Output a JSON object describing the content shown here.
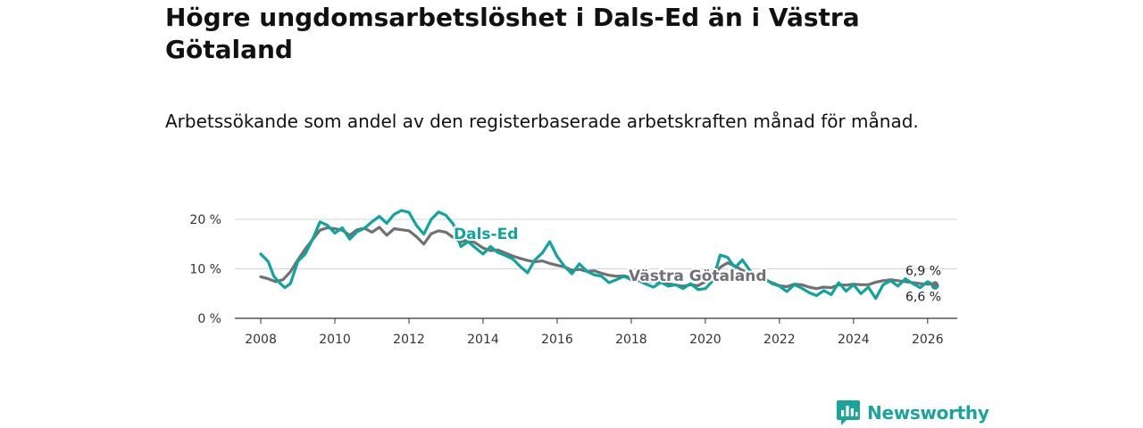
{
  "title": "Högre ungdomsarbetslöshet i Dals-Ed än i Västra Götaland",
  "subtitle": "Arbetssökande som andel av den registerbaserade arbetskraften månad för månad.",
  "brand": {
    "name": "Newsworthy",
    "color": "#1ba39c"
  },
  "chart_data": {
    "type": "line",
    "title": "Högre ungdomsarbetslöshet i Dals-Ed än i Västra Götaland",
    "subtitle": "Arbetssökande som andel av den registerbaserade arbetskraften månad för månad.",
    "xlabel": "",
    "ylabel": "",
    "xlim": [
      2007.3,
      2026.8
    ],
    "ylim": [
      0,
      20
    ],
    "yticks": [
      0,
      10,
      20
    ],
    "ytick_labels": [
      "0 %",
      "10 %",
      "20 %"
    ],
    "xticks": [
      2008,
      2010,
      2012,
      2014,
      2016,
      2018,
      2020,
      2022,
      2024,
      2026
    ],
    "xtick_labels": [
      "2008",
      "2010",
      "2012",
      "2014",
      "2016",
      "2018",
      "2020",
      "2022",
      "2024",
      "2026"
    ],
    "grid": true,
    "series": [
      {
        "name": "Västra Götaland",
        "label": "Västra Götaland",
        "color": "#717074",
        "end_label": "6,9 %",
        "points": [
          [
            2008.0,
            8.4
          ],
          [
            2008.2,
            8.0
          ],
          [
            2008.4,
            7.4
          ],
          [
            2008.6,
            7.8
          ],
          [
            2008.8,
            9.4
          ],
          [
            2009.0,
            11.8
          ],
          [
            2009.2,
            14.0
          ],
          [
            2009.4,
            15.9
          ],
          [
            2009.6,
            17.8
          ],
          [
            2009.8,
            18.3
          ],
          [
            2010.0,
            18.1
          ],
          [
            2010.2,
            17.8
          ],
          [
            2010.4,
            16.8
          ],
          [
            2010.6,
            17.9
          ],
          [
            2010.8,
            18.2
          ],
          [
            2011.0,
            17.4
          ],
          [
            2011.2,
            18.4
          ],
          [
            2011.4,
            16.8
          ],
          [
            2011.6,
            18.1
          ],
          [
            2011.8,
            17.9
          ],
          [
            2012.0,
            17.7
          ],
          [
            2012.2,
            16.5
          ],
          [
            2012.4,
            15.0
          ],
          [
            2012.6,
            17.1
          ],
          [
            2012.8,
            17.7
          ],
          [
            2013.0,
            17.4
          ],
          [
            2013.2,
            16.3
          ],
          [
            2013.4,
            15.4
          ],
          [
            2013.6,
            15.9
          ],
          [
            2013.8,
            15.2
          ],
          [
            2014.0,
            14.2
          ],
          [
            2014.2,
            13.7
          ],
          [
            2014.4,
            13.8
          ],
          [
            2014.6,
            13.2
          ],
          [
            2014.8,
            12.6
          ],
          [
            2015.0,
            12.1
          ],
          [
            2015.2,
            11.7
          ],
          [
            2015.4,
            11.4
          ],
          [
            2015.6,
            11.6
          ],
          [
            2015.8,
            11.1
          ],
          [
            2016.0,
            10.7
          ],
          [
            2016.2,
            10.4
          ],
          [
            2016.4,
            9.7
          ],
          [
            2016.6,
            9.9
          ],
          [
            2016.8,
            9.5
          ],
          [
            2017.0,
            9.6
          ],
          [
            2017.2,
            9.1
          ],
          [
            2017.4,
            8.7
          ],
          [
            2017.6,
            8.5
          ],
          [
            2017.8,
            8.6
          ],
          [
            2018.0,
            8.2
          ],
          [
            2018.2,
            7.7
          ],
          [
            2018.4,
            7.4
          ],
          [
            2018.6,
            7.5
          ],
          [
            2018.8,
            7.2
          ],
          [
            2019.0,
            7.0
          ],
          [
            2019.2,
            6.7
          ],
          [
            2019.4,
            6.5
          ],
          [
            2019.6,
            6.8
          ],
          [
            2019.8,
            6.6
          ],
          [
            2020.0,
            7.4
          ],
          [
            2020.2,
            8.3
          ],
          [
            2020.4,
            10.3
          ],
          [
            2020.6,
            11.2
          ],
          [
            2020.8,
            10.6
          ],
          [
            2021.0,
            9.7
          ],
          [
            2021.2,
            9.0
          ],
          [
            2021.4,
            8.4
          ],
          [
            2021.6,
            7.8
          ],
          [
            2021.8,
            7.2
          ],
          [
            2022.0,
            6.6
          ],
          [
            2022.2,
            6.4
          ],
          [
            2022.4,
            6.9
          ],
          [
            2022.6,
            6.8
          ],
          [
            2022.8,
            6.3
          ],
          [
            2023.0,
            6.0
          ],
          [
            2023.2,
            6.3
          ],
          [
            2023.4,
            6.2
          ],
          [
            2023.6,
            6.8
          ],
          [
            2023.8,
            6.7
          ],
          [
            2024.0,
            6.9
          ],
          [
            2024.2,
            6.8
          ],
          [
            2024.4,
            6.8
          ],
          [
            2024.6,
            7.3
          ],
          [
            2024.8,
            7.6
          ],
          [
            2025.0,
            7.8
          ],
          [
            2025.2,
            7.6
          ],
          [
            2025.4,
            7.4
          ],
          [
            2025.6,
            7.2
          ],
          [
            2025.8,
            7.0
          ],
          [
            2026.0,
            6.9
          ],
          [
            2026.2,
            6.9
          ]
        ]
      },
      {
        "name": "Dals-Ed",
        "label": "Dals-Ed",
        "color": "#0fa59c",
        "end_label": "6,6 %",
        "points": [
          [
            2008.0,
            13.0
          ],
          [
            2008.2,
            11.5
          ],
          [
            2008.35,
            8.5
          ],
          [
            2008.5,
            7.2
          ],
          [
            2008.65,
            6.2
          ],
          [
            2008.8,
            7.0
          ],
          [
            2009.0,
            11.5
          ],
          [
            2009.2,
            13.0
          ],
          [
            2009.4,
            16.0
          ],
          [
            2009.6,
            19.5
          ],
          [
            2009.8,
            18.8
          ],
          [
            2010.0,
            17.2
          ],
          [
            2010.2,
            18.3
          ],
          [
            2010.4,
            16.0
          ],
          [
            2010.6,
            17.5
          ],
          [
            2010.8,
            18.2
          ],
          [
            2011.0,
            19.5
          ],
          [
            2011.2,
            20.6
          ],
          [
            2011.4,
            19.2
          ],
          [
            2011.6,
            21.0
          ],
          [
            2011.8,
            21.8
          ],
          [
            2012.0,
            21.4
          ],
          [
            2012.2,
            18.8
          ],
          [
            2012.4,
            17.0
          ],
          [
            2012.6,
            20.0
          ],
          [
            2012.8,
            21.5
          ],
          [
            2013.0,
            20.8
          ],
          [
            2013.2,
            19.0
          ],
          [
            2013.4,
            14.5
          ],
          [
            2013.6,
            15.5
          ],
          [
            2013.8,
            14.2
          ],
          [
            2014.0,
            13.0
          ],
          [
            2014.2,
            14.5
          ],
          [
            2014.4,
            13.3
          ],
          [
            2014.6,
            12.7
          ],
          [
            2014.8,
            12.0
          ],
          [
            2015.0,
            10.5
          ],
          [
            2015.2,
            9.2
          ],
          [
            2015.4,
            11.8
          ],
          [
            2015.6,
            13.2
          ],
          [
            2015.8,
            15.5
          ],
          [
            2016.0,
            12.5
          ],
          [
            2016.2,
            10.5
          ],
          [
            2016.4,
            9.0
          ],
          [
            2016.6,
            11.0
          ],
          [
            2016.8,
            9.5
          ],
          [
            2017.0,
            8.8
          ],
          [
            2017.2,
            8.5
          ],
          [
            2017.4,
            7.2
          ],
          [
            2017.6,
            7.8
          ],
          [
            2017.8,
            8.5
          ],
          [
            2018.0,
            7.8
          ],
          [
            2018.2,
            7.6
          ],
          [
            2018.4,
            6.9
          ],
          [
            2018.6,
            6.3
          ],
          [
            2018.8,
            7.3
          ],
          [
            2019.0,
            6.5
          ],
          [
            2019.2,
            6.8
          ],
          [
            2019.4,
            6.0
          ],
          [
            2019.6,
            7.0
          ],
          [
            2019.8,
            5.8
          ],
          [
            2020.0,
            6.0
          ],
          [
            2020.2,
            7.6
          ],
          [
            2020.4,
            12.8
          ],
          [
            2020.6,
            12.3
          ],
          [
            2020.8,
            10.2
          ],
          [
            2021.0,
            11.8
          ],
          [
            2021.2,
            9.7
          ],
          [
            2021.4,
            8.5
          ],
          [
            2021.6,
            8.0
          ],
          [
            2021.8,
            7.0
          ],
          [
            2022.0,
            6.5
          ],
          [
            2022.2,
            5.4
          ],
          [
            2022.4,
            6.8
          ],
          [
            2022.6,
            6.1
          ],
          [
            2022.8,
            5.2
          ],
          [
            2023.0,
            4.6
          ],
          [
            2023.2,
            5.6
          ],
          [
            2023.4,
            4.8
          ],
          [
            2023.6,
            7.2
          ],
          [
            2023.8,
            5.5
          ],
          [
            2024.0,
            6.8
          ],
          [
            2024.2,
            5.0
          ],
          [
            2024.4,
            6.3
          ],
          [
            2024.6,
            4.0
          ],
          [
            2024.8,
            6.8
          ],
          [
            2025.0,
            7.6
          ],
          [
            2025.2,
            6.5
          ],
          [
            2025.4,
            8.0
          ],
          [
            2025.6,
            7.0
          ],
          [
            2025.8,
            6.2
          ],
          [
            2026.0,
            7.4
          ],
          [
            2026.2,
            6.6
          ]
        ]
      }
    ]
  }
}
